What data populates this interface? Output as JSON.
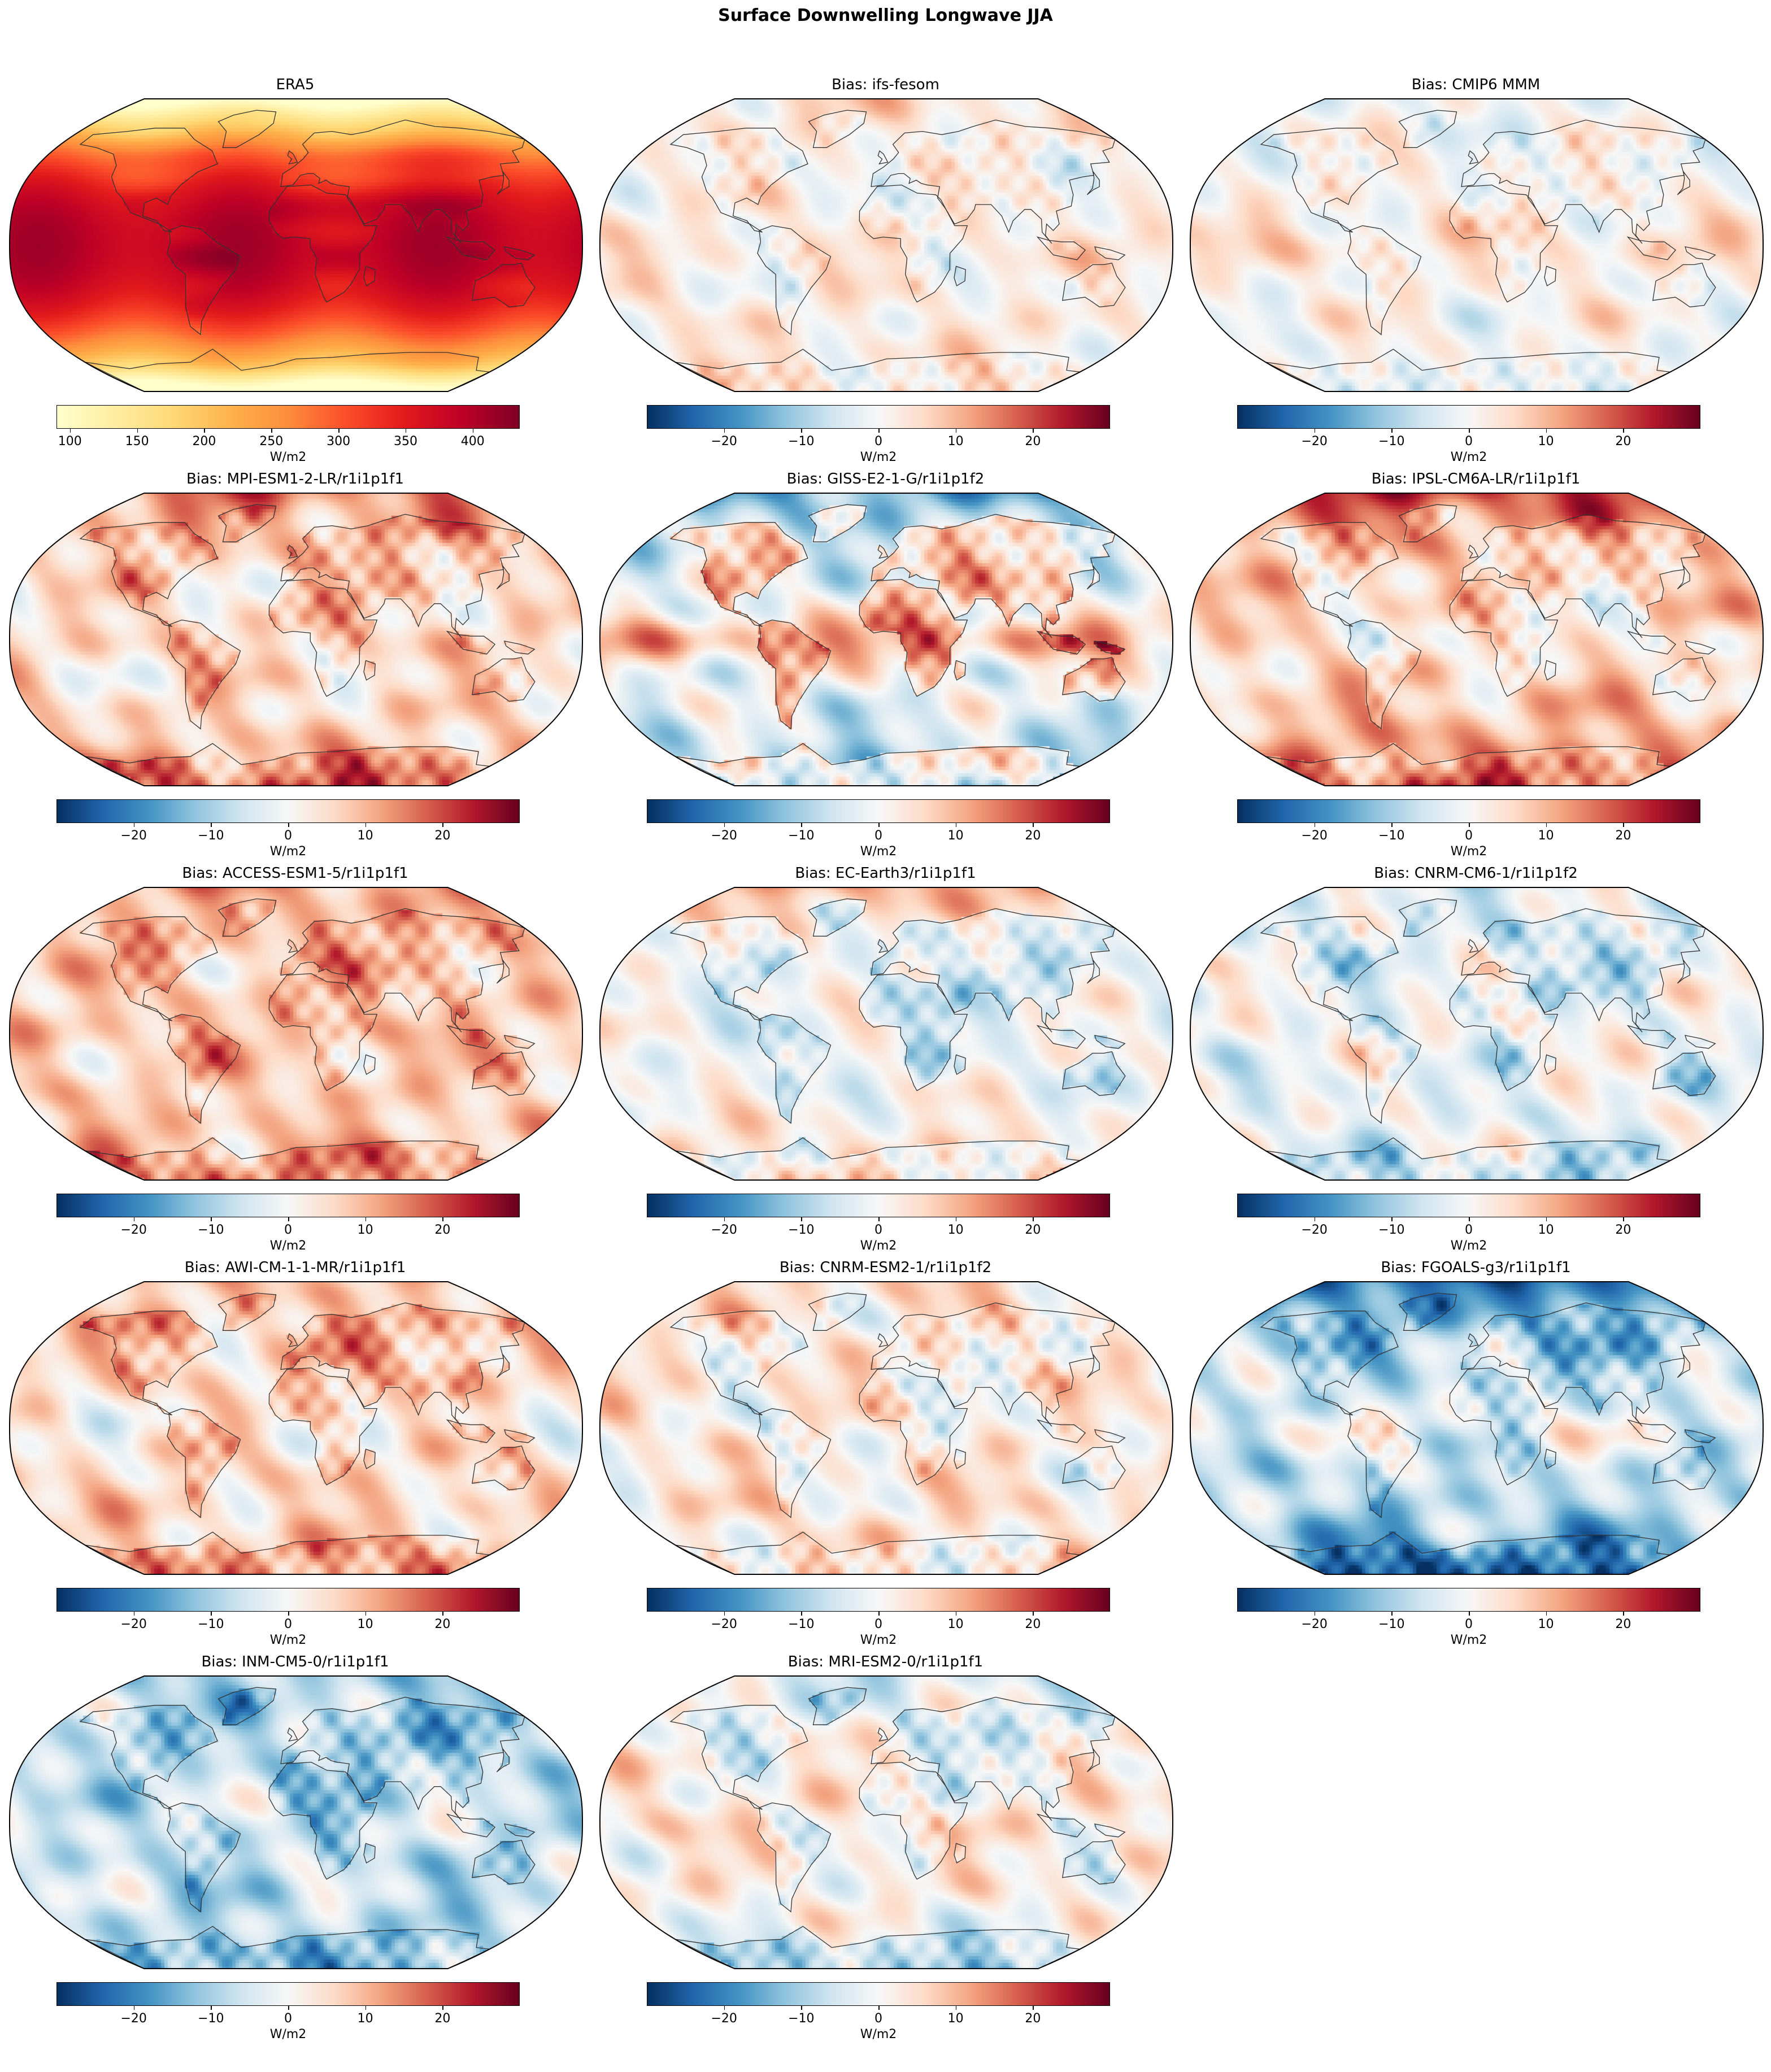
{
  "figure": {
    "title": "Surface Downwelling Longwave JJA",
    "colors": {
      "coast": "#333333",
      "frame": "#000000"
    }
  },
  "colorbars": {
    "absolute": {
      "cmap": "YlOrRd",
      "range": [
        90,
        435
      ],
      "ticks": [
        "100",
        "150",
        "200",
        "250",
        "300",
        "350",
        "400"
      ],
      "label": "W/m2"
    },
    "bias": {
      "cmap": "RdBu_r",
      "range": [
        -30,
        30
      ],
      "ticks": [
        "−20",
        "−10",
        "0",
        "10",
        "20"
      ],
      "label": "W/m2"
    }
  },
  "panels": [
    {
      "title": "ERA5",
      "kind": "absolute",
      "field": {
        "base": 0.62,
        "tropic": 0.28,
        "pole": -0.45,
        "land": 0.06,
        "noise": 0.08,
        "seed": 1
      }
    },
    {
      "title": "Bias: ifs-fesom",
      "kind": "bias",
      "field": {
        "base": 0.06,
        "tropic": 0.05,
        "pole": 0.1,
        "land": -0.05,
        "noise": 0.3,
        "seed": 2
      }
    },
    {
      "title": "Bias: CMIP6 MMM",
      "kind": "bias",
      "field": {
        "base": 0.04,
        "tropic": 0.1,
        "pole": -0.08,
        "land": -0.02,
        "noise": 0.3,
        "seed": 3
      }
    },
    {
      "title": "Bias: MPI-ESM1-2-LR/r1i1p1f1",
      "kind": "bias",
      "field": {
        "base": 0.12,
        "tropic": 0.05,
        "pole": 0.35,
        "land": 0.1,
        "noise": 0.38,
        "seed": 4
      }
    },
    {
      "title": "Bias: GISS-E2-1-G/r1i1p1f2",
      "kind": "bias",
      "field": {
        "base": -0.05,
        "tropic": 0.35,
        "pole": -0.4,
        "land": 0.3,
        "noise": 0.4,
        "seed": 5
      }
    },
    {
      "title": "Bias: IPSL-CM6A-LR/r1i1p1f1",
      "kind": "bias",
      "field": {
        "base": 0.2,
        "tropic": -0.1,
        "pole": 0.45,
        "land": -0.08,
        "noise": 0.38,
        "seed": 6
      }
    },
    {
      "title": "Bias: ACCESS-ESM1-5/r1i1p1f1",
      "kind": "bias",
      "field": {
        "base": 0.2,
        "tropic": 0.05,
        "pole": 0.15,
        "land": 0.1,
        "noise": 0.36,
        "seed": 7
      }
    },
    {
      "title": "Bias: EC-Earth3/r1i1p1f1",
      "kind": "bias",
      "field": {
        "base": -0.02,
        "tropic": 0.0,
        "pole": 0.35,
        "land": -0.18,
        "noise": 0.32,
        "seed": 8
      }
    },
    {
      "title": "Bias: CNRM-CM6-1/r1i1p1f2",
      "kind": "bias",
      "field": {
        "base": -0.04,
        "tropic": 0.06,
        "pole": -0.05,
        "land": -0.1,
        "noise": 0.38,
        "seed": 9
      }
    },
    {
      "title": "Bias: AWI-CM-1-1-MR/r1i1p1f1",
      "kind": "bias",
      "field": {
        "base": 0.15,
        "tropic": -0.1,
        "pole": 0.1,
        "land": 0.15,
        "noise": 0.38,
        "seed": 10
      }
    },
    {
      "title": "Bias: CNRM-ESM2-1/r1i1p1f2",
      "kind": "bias",
      "field": {
        "base": 0.1,
        "tropic": -0.05,
        "pole": 0.05,
        "land": -0.05,
        "noise": 0.38,
        "seed": 11
      }
    },
    {
      "title": "Bias: FGOALS-g3/r1i1p1f1",
      "kind": "bias",
      "field": {
        "base": -0.18,
        "tropic": 0.15,
        "pole": -0.55,
        "land": -0.05,
        "noise": 0.42,
        "seed": 12
      }
    },
    {
      "title": "Bias: INM-CM5-0/r1i1p1f1",
      "kind": "bias",
      "field": {
        "base": -0.2,
        "tropic": 0.05,
        "pole": -0.1,
        "land": -0.12,
        "noise": 0.4,
        "seed": 13
      }
    },
    {
      "title": "Bias: MRI-ESM2-0/r1i1p1f1",
      "kind": "bias",
      "field": {
        "base": 0.08,
        "tropic": 0.05,
        "pole": -0.25,
        "land": -0.12,
        "noise": 0.36,
        "seed": 14
      }
    }
  ]
}
